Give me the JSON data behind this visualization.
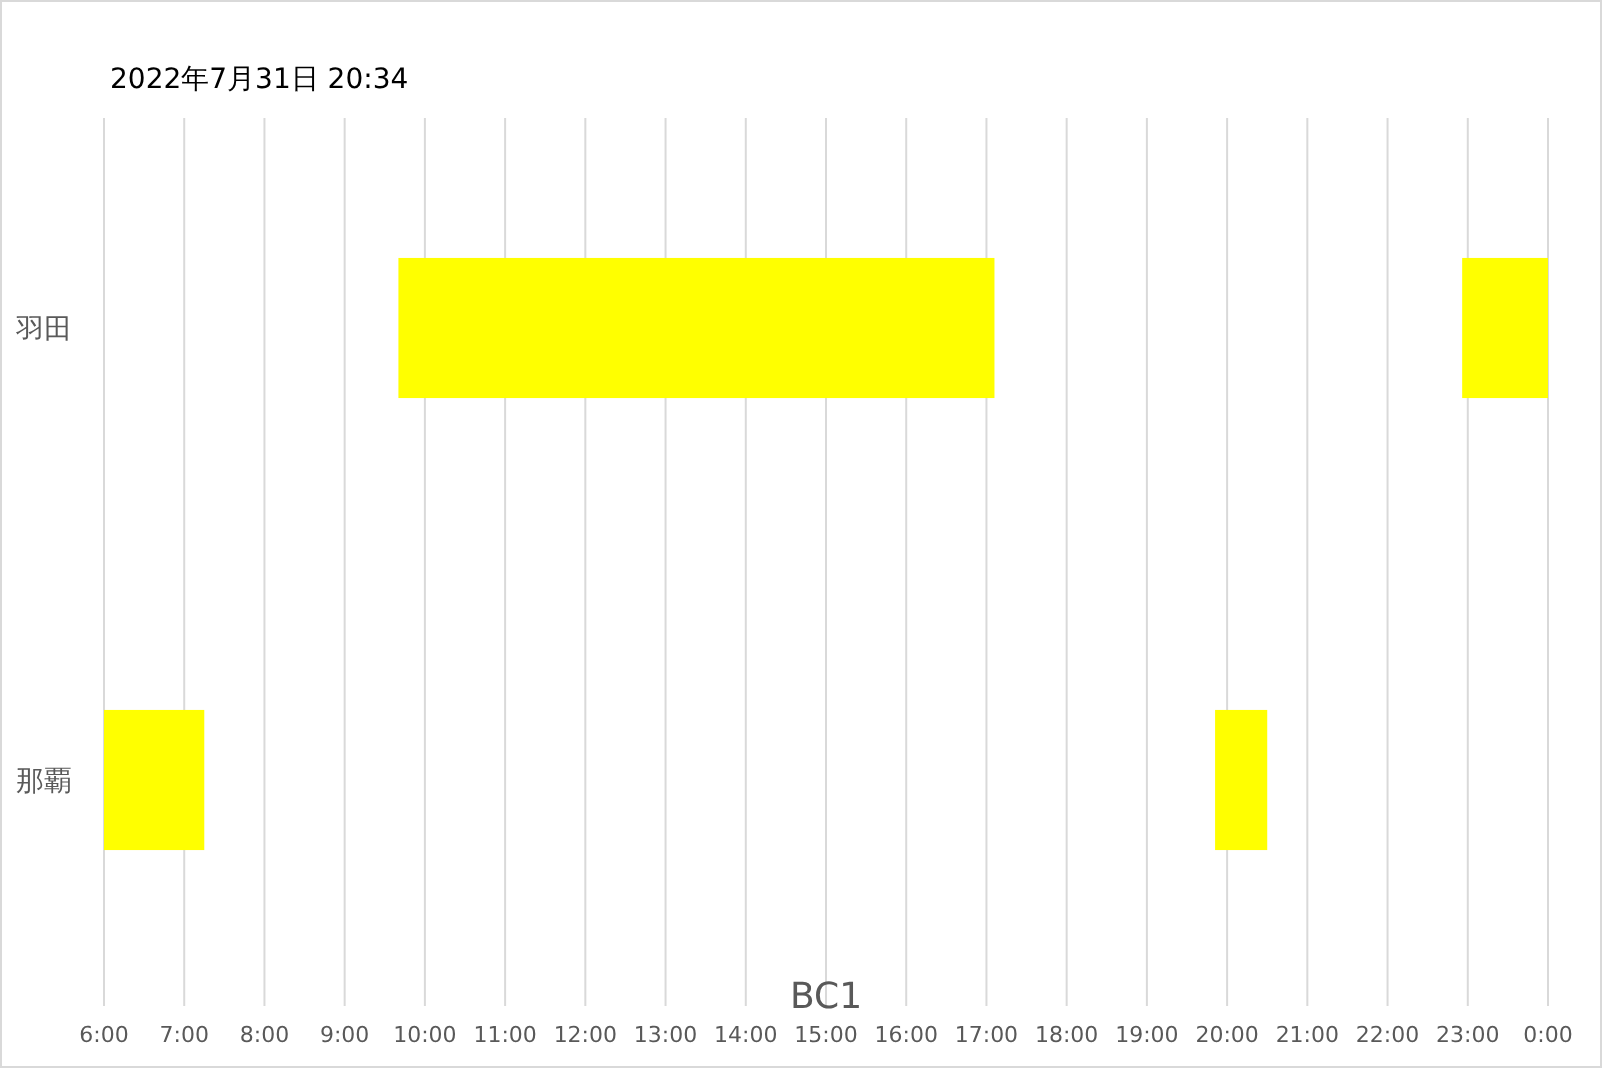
{
  "chart_data": {
    "type": "bar",
    "orientation": "horizontal",
    "title": "2022年7月31日 20:34",
    "xlabel": "BC1",
    "categories": [
      "羽田",
      "那覇"
    ],
    "series": [
      {
        "color": "#ffff00",
        "values": [
          7.43,
          1.25
        ],
        "base": [
          9.67,
          6
        ]
      },
      {
        "color": "#ffff00",
        "values": [
          1.07,
          0.65
        ],
        "base": [
          22.93,
          19.85
        ]
      }
    ],
    "xlim": [
      6,
      24
    ],
    "xticks": [
      {
        "value": 6,
        "label": "6:00"
      },
      {
        "value": 7,
        "label": "7:00"
      },
      {
        "value": 8,
        "label": "8:00"
      },
      {
        "value": 9,
        "label": "9:00"
      },
      {
        "value": 10,
        "label": "10:00"
      },
      {
        "value": 11,
        "label": "11:00"
      },
      {
        "value": 12,
        "label": "12:00"
      },
      {
        "value": 13,
        "label": "13:00"
      },
      {
        "value": 14,
        "label": "14:00"
      },
      {
        "value": 15,
        "label": "15:00"
      },
      {
        "value": 16,
        "label": "16:00"
      },
      {
        "value": 17,
        "label": "17:00"
      },
      {
        "value": 18,
        "label": "18:00"
      },
      {
        "value": 19,
        "label": "19:00"
      },
      {
        "value": 20,
        "label": "20:00"
      },
      {
        "value": 21,
        "label": "21:00"
      },
      {
        "value": 22,
        "label": "22:00"
      },
      {
        "value": 23,
        "label": "23:00"
      },
      {
        "value": 24,
        "label": "0:00"
      }
    ],
    "grid": "x"
  }
}
